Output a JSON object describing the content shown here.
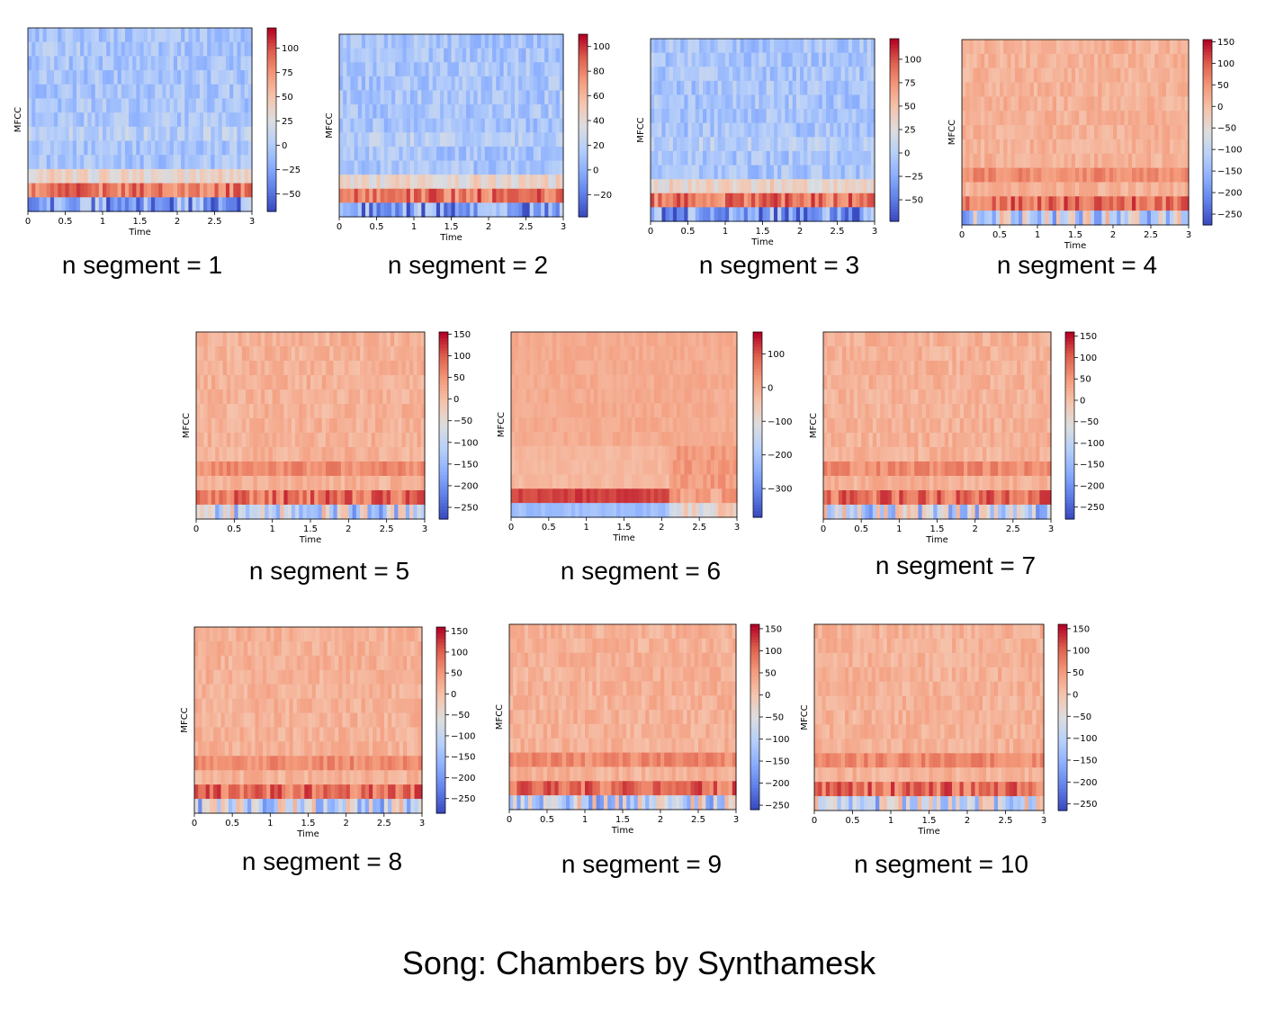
{
  "title": "Song: Chambers by Synthamesk",
  "colormap": {
    "name": "coolwarm",
    "low": "#3b4cc0",
    "mid": "#dddddd",
    "high": "#b40426"
  },
  "chart_data": [
    {
      "type": "heatmap",
      "caption": "n segment = 1",
      "xlabel": "Time",
      "ylabel": "MFCC",
      "xticks": [
        "0",
        "0.5",
        "1",
        "1.5",
        "2",
        "2.5",
        "3"
      ],
      "xlim": [
        0,
        3
      ],
      "colorbar_ticks": [
        100,
        75,
        50,
        25,
        0,
        -25,
        -50
      ],
      "colorbar_range": [
        -68,
        121
      ],
      "n_coeff": 13,
      "n_frames": 60,
      "style": "cool"
    },
    {
      "type": "heatmap",
      "caption": "n segment = 2",
      "xlabel": "Time",
      "ylabel": "MFCC",
      "xticks": [
        "0",
        "0.5",
        "1",
        "1.5",
        "2",
        "2.5",
        "3"
      ],
      "xlim": [
        0,
        3
      ],
      "colorbar_ticks": [
        100,
        80,
        60,
        40,
        20,
        0,
        -20
      ],
      "colorbar_range": [
        -38,
        110
      ],
      "n_coeff": 13,
      "n_frames": 60,
      "style": "cool"
    },
    {
      "type": "heatmap",
      "caption": "n segment = 3",
      "xlabel": "Time",
      "ylabel": "MFCC",
      "xticks": [
        "0",
        "0.5",
        "1",
        "1.5",
        "2",
        "2.5",
        "3"
      ],
      "xlim": [
        0,
        3
      ],
      "colorbar_ticks": [
        100,
        75,
        50,
        25,
        0,
        -25,
        -50
      ],
      "colorbar_range": [
        -73,
        122
      ],
      "n_coeff": 13,
      "n_frames": 60,
      "style": "cool"
    },
    {
      "type": "heatmap",
      "caption": "n segment = 4",
      "xlabel": "Time",
      "ylabel": "MFCC",
      "xticks": [
        "0",
        "0.5",
        "1",
        "1.5",
        "2",
        "2.5",
        "3"
      ],
      "xlim": [
        0,
        3
      ],
      "colorbar_ticks": [
        150,
        100,
        50,
        0,
        -50,
        -100,
        -150,
        -200,
        -250
      ],
      "colorbar_range": [
        -275,
        155
      ],
      "n_coeff": 13,
      "n_frames": 60,
      "style": "warm"
    },
    {
      "type": "heatmap",
      "caption": "n segment = 5",
      "xlabel": "Time",
      "ylabel": "MFCC",
      "xticks": [
        "0",
        "0.5",
        "1",
        "1.5",
        "2",
        "2.5",
        "3"
      ],
      "xlim": [
        0,
        3
      ],
      "colorbar_ticks": [
        150,
        100,
        50,
        0,
        -50,
        -100,
        -150,
        -200,
        -250
      ],
      "colorbar_range": [
        -277,
        155
      ],
      "n_coeff": 13,
      "n_frames": 60,
      "style": "warm"
    },
    {
      "type": "heatmap",
      "caption": "n segment = 6",
      "xlabel": "Time",
      "ylabel": "MFCC",
      "xticks": [
        "0",
        "0.5",
        "1",
        "1.5",
        "2",
        "2.5",
        "3"
      ],
      "xlim": [
        0,
        3
      ],
      "colorbar_ticks": [
        100,
        0,
        -100,
        -200,
        -300
      ],
      "colorbar_range": [
        -385,
        165
      ],
      "n_coeff": 13,
      "n_frames": 60,
      "style": "warm-split"
    },
    {
      "type": "heatmap",
      "caption": "n segment = 7",
      "xlabel": "Time",
      "ylabel": "MFCC",
      "xticks": [
        "0",
        "0.5",
        "1",
        "1.5",
        "2",
        "2.5",
        "3"
      ],
      "xlim": [
        0,
        3
      ],
      "colorbar_ticks": [
        150,
        100,
        50,
        0,
        -50,
        -100,
        -150,
        -200,
        -250
      ],
      "colorbar_range": [
        -278,
        160
      ],
      "n_coeff": 13,
      "n_frames": 60,
      "style": "warm"
    },
    {
      "type": "heatmap",
      "caption": "n segment = 8",
      "xlabel": "Time",
      "ylabel": "MFCC",
      "xticks": [
        "0",
        "0.5",
        "1",
        "1.5",
        "2",
        "2.5",
        "3"
      ],
      "xlim": [
        0,
        3
      ],
      "colorbar_ticks": [
        150,
        100,
        50,
        0,
        -50,
        -100,
        -150,
        -200,
        -250
      ],
      "colorbar_range": [
        -285,
        160
      ],
      "n_coeff": 13,
      "n_frames": 60,
      "style": "warm"
    },
    {
      "type": "heatmap",
      "caption": "n segment = 9",
      "xlabel": "Time",
      "ylabel": "MFCC",
      "xticks": [
        "0",
        "0.5",
        "1",
        "1.5",
        "2",
        "2.5",
        "3"
      ],
      "xlim": [
        0,
        3
      ],
      "colorbar_ticks": [
        150,
        100,
        50,
        0,
        -50,
        -100,
        -150,
        -200,
        -250
      ],
      "colorbar_range": [
        -260,
        160
      ],
      "n_coeff": 13,
      "n_frames": 60,
      "style": "warm"
    },
    {
      "type": "heatmap",
      "caption": "n segment = 10",
      "xlabel": "Time",
      "ylabel": "MFCC",
      "xticks": [
        "0",
        "0.5",
        "1",
        "1.5",
        "2",
        "2.5",
        "3"
      ],
      "xlim": [
        0,
        3
      ],
      "colorbar_ticks": [
        150,
        100,
        50,
        0,
        -50,
        -100,
        -150,
        -200,
        -250
      ],
      "colorbar_range": [
        -265,
        160
      ],
      "n_coeff": 13,
      "n_frames": 60,
      "style": "warm"
    }
  ]
}
